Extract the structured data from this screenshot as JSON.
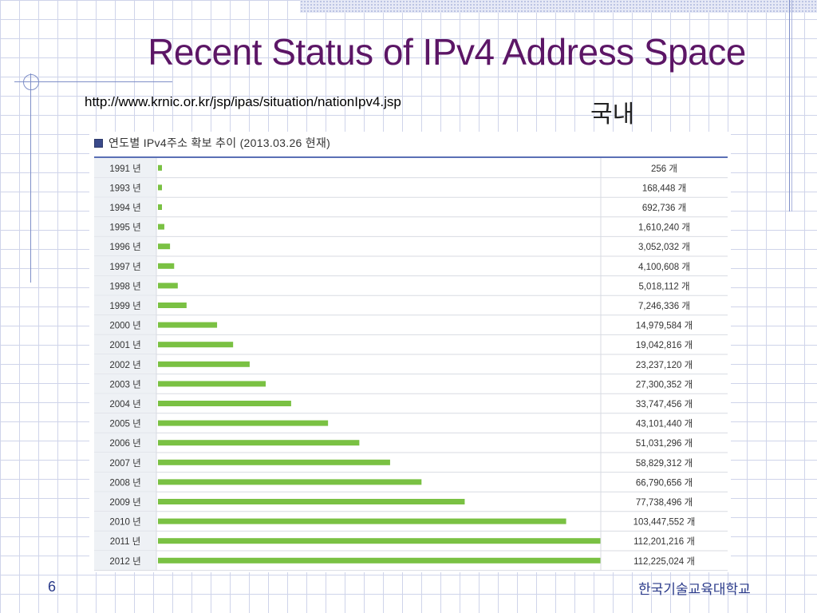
{
  "slide": {
    "title": "Recent Status of IPv4 Address Space",
    "source_url": "http://www.krnic.or.kr/jsp/ipas/situation/nationIpv4.jsp",
    "domestic_label": "국내",
    "page_number": "6",
    "footer_org": "한국기술교육대학교"
  },
  "colors": {
    "title": "#5c1666",
    "bar": "#7ac143",
    "header_rule": "#5a6fb5"
  },
  "chart_data": {
    "type": "bar",
    "orientation": "horizontal",
    "title": "연도별 IPv4주소 확보 추이 (2013.03.26 현재)",
    "categories": [
      "1991 년",
      "1993 년",
      "1994 년",
      "1995 년",
      "1996 년",
      "1997 년",
      "1998 년",
      "1999 년",
      "2000 년",
      "2001 년",
      "2002 년",
      "2003 년",
      "2004 년",
      "2005 년",
      "2006 년",
      "2007 년",
      "2008 년",
      "2009 년",
      "2010 년",
      "2011 년",
      "2012 년"
    ],
    "values": [
      256,
      168448,
      692736,
      1610240,
      3052032,
      4100608,
      5018112,
      7246336,
      14979584,
      19042816,
      23237120,
      27300352,
      33747456,
      43101440,
      51031296,
      58829312,
      66790656,
      77738496,
      103447552,
      112201216,
      112225024
    ],
    "value_labels": [
      "256 개",
      "168,448 개",
      "692,736 개",
      "1,610,240 개",
      "3,052,032 개",
      "4,100,608 개",
      "5,018,112 개",
      "7,246,336 개",
      "14,979,584 개",
      "19,042,816 개",
      "23,237,120 개",
      "27,300,352 개",
      "33,747,456 개",
      "43,101,440 개",
      "51,031,296 개",
      "58,829,312 개",
      "66,790,656 개",
      "77,738,496 개",
      "103,447,552 개",
      "112,201,216 개",
      "112,225,024 개"
    ],
    "xlim": [
      0,
      112225024
    ],
    "grid": false,
    "legend": "none"
  }
}
